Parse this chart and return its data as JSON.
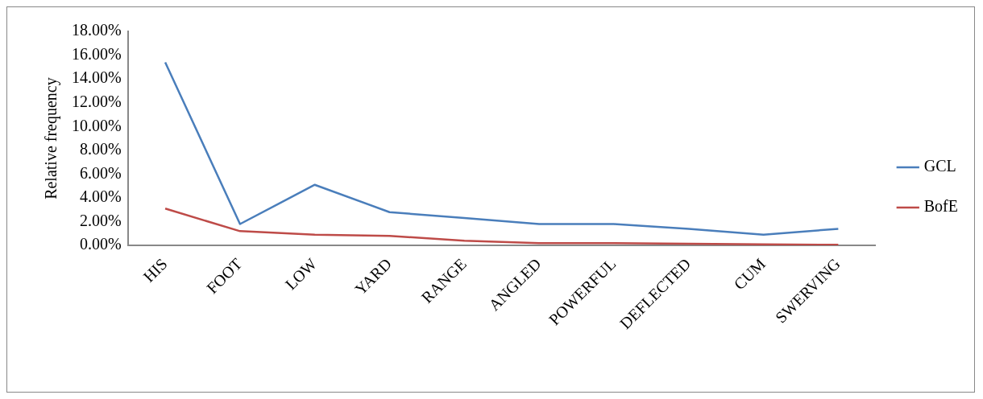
{
  "chart_data": {
    "type": "line",
    "ylabel": "Relative frequency",
    "categories": [
      "HIS",
      "FOOT",
      "LOW",
      "YARD",
      "RANGE",
      "ANGLED",
      "POWERFUL",
      "DEFLECTED",
      "CUM",
      "SWERVING"
    ],
    "series": [
      {
        "name": "GCL",
        "color": "#4a7ebb",
        "values": [
          15.4,
          1.8,
          5.1,
          2.8,
          2.3,
          1.8,
          1.8,
          1.4,
          0.9,
          1.4
        ]
      },
      {
        "name": "BofE",
        "color": "#be4b48",
        "values": [
          3.1,
          1.2,
          0.9,
          0.8,
          0.4,
          0.2,
          0.2,
          0.15,
          0.1,
          0.05
        ]
      }
    ],
    "ylim": [
      0,
      18
    ],
    "yticks": [
      {
        "value": 0,
        "label": "0.00%"
      },
      {
        "value": 2,
        "label": "2.00%"
      },
      {
        "value": 4,
        "label": "4.00%"
      },
      {
        "value": 6,
        "label": "6.00%"
      },
      {
        "value": 8,
        "label": "8.00%"
      },
      {
        "value": 10,
        "label": "10.00%"
      },
      {
        "value": 12,
        "label": "12.00%"
      },
      {
        "value": 14,
        "label": "14.00%"
      },
      {
        "value": 16,
        "label": "16.00%"
      },
      {
        "value": 18,
        "label": "18.00%"
      }
    ],
    "legend": "right",
    "marker": "none",
    "line_style": "solid"
  }
}
